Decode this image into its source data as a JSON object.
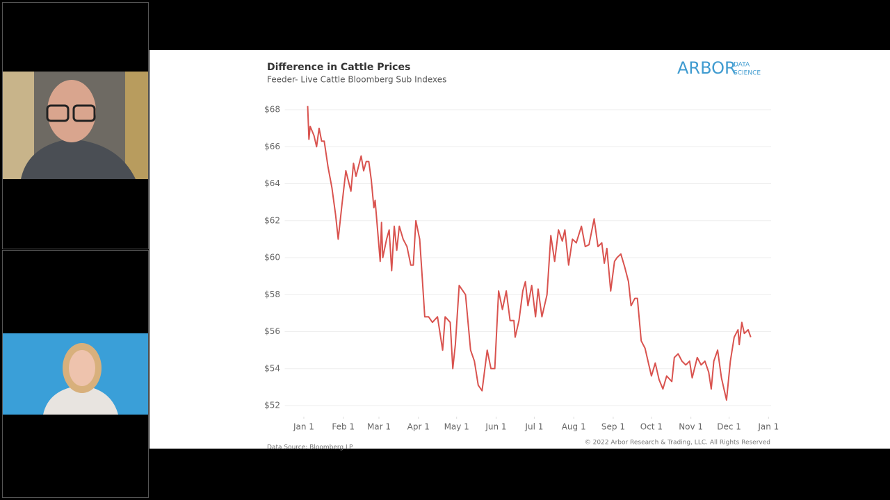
{
  "logo": {
    "main": "ARBOR",
    "top": "DATA",
    "bottom": "SCIENCE"
  },
  "source": "Data Source: Bloomberg LP",
  "copyright": "© 2022 Arbor Research & Trading, LLC. All Rights Reserved",
  "chart_data": {
    "type": "line",
    "title": "Difference in Cattle Prices",
    "subtitle": "Feeder- Live Cattle Bloomberg Sub Indexes",
    "x": [
      3,
      4,
      5,
      8,
      10,
      12,
      14,
      16,
      19,
      22,
      25,
      27,
      30,
      33,
      37,
      39,
      41,
      45,
      47,
      49,
      51,
      53,
      55,
      56,
      60,
      61,
      62,
      65,
      67,
      69,
      71,
      73,
      75,
      78,
      81,
      84,
      86,
      88,
      91,
      93,
      95,
      98,
      101,
      105,
      109,
      111,
      115,
      117,
      119,
      122,
      124,
      127,
      131,
      134,
      137,
      140,
      144,
      147,
      150,
      153,
      156,
      159,
      162,
      165,
      166,
      169,
      172,
      174,
      176,
      179,
      182,
      184,
      187,
      191,
      194,
      197,
      200,
      203,
      205,
      208,
      211,
      214,
      218,
      221,
      224,
      228,
      231,
      234,
      236,
      238,
      241,
      244,
      246,
      249,
      252,
      255,
      257,
      260,
      262,
      265,
      268,
      271,
      273,
      276,
      279,
      282,
      285,
      289,
      291,
      294,
      297,
      300,
      303,
      305,
      309,
      312,
      315,
      318,
      320,
      322,
      325,
      328,
      330,
      332,
      335,
      338,
      341,
      342,
      344,
      346,
      349,
      351
    ],
    "values": [
      68.2,
      66.4,
      67.1,
      66.6,
      66.0,
      67.0,
      66.3,
      66.3,
      64.9,
      63.8,
      62.3,
      61.0,
      62.9,
      64.7,
      63.6,
      65.1,
      64.4,
      65.5,
      64.7,
      65.2,
      65.2,
      64.2,
      62.7,
      63.1,
      59.8,
      61.9,
      60.0,
      61.0,
      61.5,
      59.3,
      61.7,
      60.4,
      61.7,
      61.0,
      60.6,
      59.6,
      59.6,
      62.0,
      61.0,
      58.9,
      56.8,
      56.8,
      56.5,
      56.8,
      55.0,
      56.8,
      56.5,
      54.0,
      55.3,
      58.5,
      58.3,
      58.0,
      55.0,
      54.4,
      53.1,
      52.8,
      55.0,
      54.0,
      54.0,
      58.2,
      57.2,
      58.2,
      56.6,
      56.6,
      55.7,
      56.6,
      58.2,
      58.7,
      57.4,
      58.5,
      56.8,
      58.3,
      56.8,
      58.0,
      61.2,
      59.8,
      61.5,
      60.9,
      61.5,
      59.6,
      61.0,
      60.8,
      61.7,
      60.6,
      60.7,
      62.1,
      60.6,
      60.8,
      59.7,
      60.5,
      58.2,
      59.8,
      60.0,
      60.2,
      59.5,
      58.7,
      57.4,
      57.8,
      57.8,
      55.5,
      55.1,
      54.2,
      53.6,
      54.3,
      53.4,
      52.9,
      53.6,
      53.3,
      54.6,
      54.8,
      54.4,
      54.2,
      54.4,
      53.5,
      54.6,
      54.2,
      54.4,
      53.8,
      52.9,
      54.4,
      55.0,
      53.5,
      52.9,
      52.3,
      54.4,
      55.7,
      56.1,
      55.3,
      56.5,
      55.9,
      56.1,
      55.7
    ],
    "color": "#d9534f",
    "xlim": [
      -15,
      367
    ],
    "xticks": [
      {
        "value": 0,
        "label": "Jan 1"
      },
      {
        "value": 31,
        "label": "Feb 1"
      },
      {
        "value": 59,
        "label": "Mar 1"
      },
      {
        "value": 90,
        "label": "Apr 1"
      },
      {
        "value": 120,
        "label": "May 1"
      },
      {
        "value": 151,
        "label": "Jun 1"
      },
      {
        "value": 181,
        "label": "Jul 1"
      },
      {
        "value": 212,
        "label": "Aug 1"
      },
      {
        "value": 243,
        "label": "Sep 1"
      },
      {
        "value": 273,
        "label": "Oct 1"
      },
      {
        "value": 304,
        "label": "Nov 1"
      },
      {
        "value": 334,
        "label": "Dec 1"
      },
      {
        "value": 365,
        "label": "Jan 1"
      }
    ],
    "ylim": [
      51.4,
      68.7
    ],
    "yticks": [
      {
        "value": 52,
        "label": "$52"
      },
      {
        "value": 54,
        "label": "$54"
      },
      {
        "value": 56,
        "label": "$56"
      },
      {
        "value": 58,
        "label": "$58"
      },
      {
        "value": 60,
        "label": "$60"
      },
      {
        "value": 62,
        "label": "$62"
      },
      {
        "value": 64,
        "label": "$64"
      },
      {
        "value": 66,
        "label": "$66"
      },
      {
        "value": 68,
        "label": "$68"
      }
    ],
    "grid": true
  }
}
